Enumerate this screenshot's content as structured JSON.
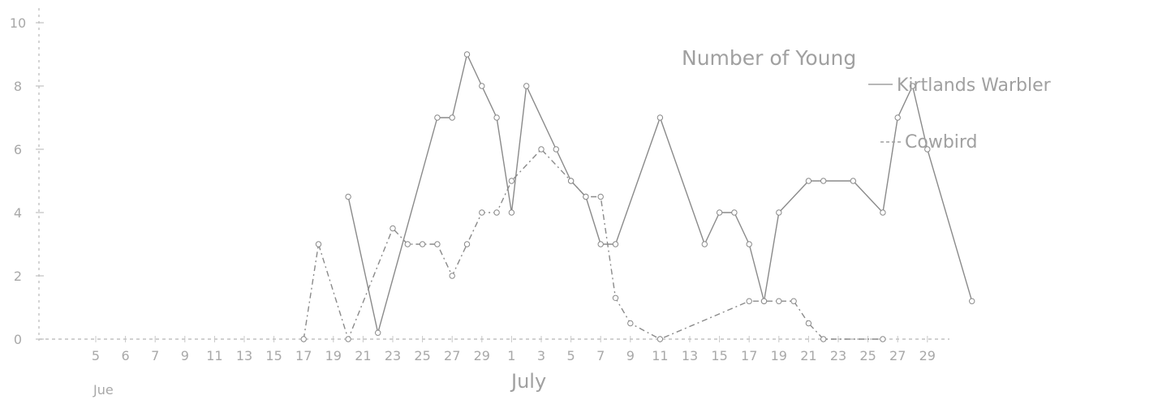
{
  "chart_data": {
    "type": "line",
    "title": "Number of Young",
    "xlabel": "July",
    "xlabel_secondary": "Jue",
    "ylabel": "",
    "grid": false,
    "legend_position": "top-right",
    "ylim": [
      0,
      10
    ],
    "yticks": [
      0,
      2,
      4,
      6,
      8,
      10
    ],
    "x_tick_labels": [
      "5",
      "6",
      "7",
      "9",
      "11",
      "13",
      "15",
      "17",
      "19",
      "21",
      "23",
      "25",
      "27",
      "29",
      "1",
      "3",
      "5",
      "7",
      "9",
      "11",
      "13",
      "15",
      "17",
      "19",
      "21",
      "23",
      "25",
      "27",
      "29"
    ],
    "colors": {
      "line": "#8a8a8a",
      "text": "#a0a0a0"
    },
    "series": [
      {
        "name": "Kirtlands Warbler",
        "style": "solid",
        "points": [
          [
            17,
            4.5
          ],
          [
            19,
            0.2
          ],
          [
            23,
            7
          ],
          [
            24,
            7
          ],
          [
            25,
            9
          ],
          [
            26,
            8
          ],
          [
            27,
            7
          ],
          [
            28,
            4
          ],
          [
            29,
            8
          ],
          [
            31,
            6
          ],
          [
            32,
            5
          ],
          [
            33,
            4.5
          ],
          [
            34,
            3
          ],
          [
            35,
            3
          ],
          [
            38,
            7
          ],
          [
            41,
            3
          ],
          [
            42,
            4
          ],
          [
            43,
            4
          ],
          [
            44,
            3
          ],
          [
            45,
            1.2
          ],
          [
            46,
            4
          ],
          [
            48,
            5
          ],
          [
            49,
            5
          ],
          [
            51,
            5
          ],
          [
            53,
            4
          ],
          [
            54,
            7
          ],
          [
            55,
            8
          ],
          [
            56,
            6
          ],
          [
            59,
            1.2
          ]
        ]
      },
      {
        "name": "Cowbird",
        "style": "dashed",
        "points": [
          [
            14,
            0
          ],
          [
            15,
            3
          ],
          [
            17,
            0
          ],
          [
            20,
            3.5
          ],
          [
            21,
            3
          ],
          [
            22,
            3
          ],
          [
            23,
            3
          ],
          [
            24,
            2
          ],
          [
            25,
            3
          ],
          [
            26,
            4
          ],
          [
            27,
            4
          ],
          [
            28,
            5
          ],
          [
            30,
            6
          ],
          [
            32,
            5
          ],
          [
            33,
            4.5
          ],
          [
            34,
            4.5
          ],
          [
            35,
            1.3
          ],
          [
            36,
            0.5
          ],
          [
            38,
            0
          ],
          [
            44,
            1.2
          ],
          [
            45,
            1.2
          ],
          [
            46,
            1.2
          ],
          [
            47,
            1.2
          ],
          [
            48,
            0.5
          ],
          [
            49,
            0
          ],
          [
            53,
            0
          ]
        ]
      }
    ]
  }
}
